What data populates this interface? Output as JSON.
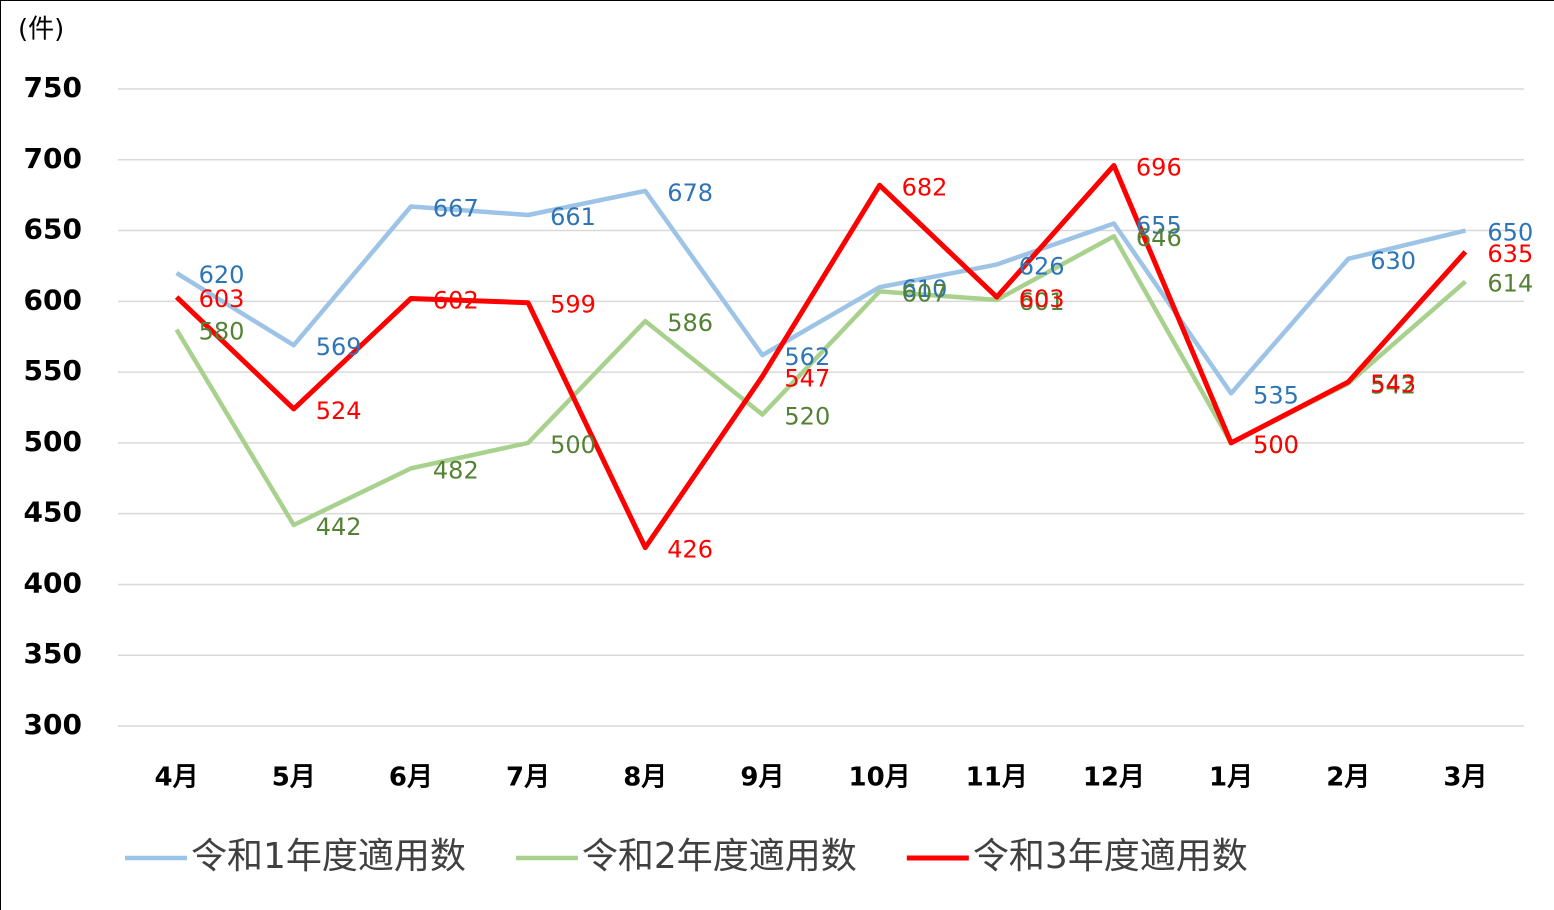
{
  "chart_data": {
    "type": "line",
    "y_unit": "(件)",
    "categories": [
      "4月",
      "5月",
      "6月",
      "7月",
      "8月",
      "9月",
      "10月",
      "11月",
      "12月",
      "1月",
      "2月",
      "3月"
    ],
    "series": [
      {
        "name": "令和1年度適用数",
        "color": "#9dc3e6",
        "label_color": "#2e75b6",
        "values": [
          620,
          569,
          667,
          661,
          678,
          562,
          610,
          626,
          655,
          535,
          630,
          650
        ]
      },
      {
        "name": "令和2年度適用数",
        "color": "#a9d18e",
        "label_color": "#548235",
        "values": [
          580,
          442,
          482,
          500,
          586,
          520,
          607,
          601,
          646,
          500,
          542,
          614
        ]
      },
      {
        "name": "令和3年度適用数",
        "color": "#ff0000",
        "label_color": "#ff0000",
        "values": [
          603,
          524,
          602,
          599,
          426,
          547,
          682,
          603,
          696,
          500,
          543,
          635
        ]
      }
    ],
    "ylim": [
      300,
      750
    ],
    "yticks": [
      300,
      350,
      400,
      450,
      500,
      550,
      600,
      650,
      700,
      750
    ],
    "grid": true,
    "legend": "bottom"
  }
}
